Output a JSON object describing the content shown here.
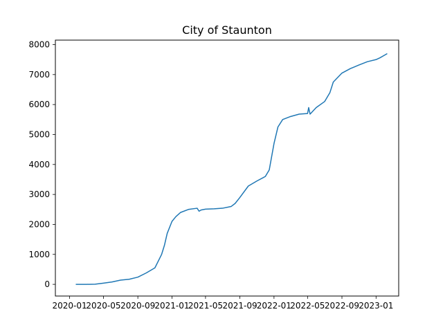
{
  "chart_data": {
    "type": "line",
    "title": "City of Staunton",
    "xlabel": "",
    "ylabel": "",
    "xlim": [
      "2019-11-11",
      "2023-03-23"
    ],
    "ylim": [
      -390,
      8150
    ],
    "grid": false,
    "legend": "none",
    "x_ticks": [
      "2020-01",
      "2020-05",
      "2020-09",
      "2021-01",
      "2021-05",
      "2021-09",
      "2022-01",
      "2022-05",
      "2022-09",
      "2023-01"
    ],
    "y_ticks": [
      0,
      1000,
      2000,
      3000,
      4000,
      5000,
      6000,
      7000,
      8000
    ],
    "colors": {
      "line": "#1f77b4"
    },
    "series": [
      {
        "x": [
          "2020-01-23",
          "2020-03-01",
          "2020-04-01",
          "2020-05-01",
          "2020-06-01",
          "2020-07-01",
          "2020-08-01",
          "2020-09-01",
          "2020-10-01",
          "2020-11-01",
          "2020-11-25",
          "2020-12-05",
          "2020-12-15",
          "2021-01-01",
          "2021-01-15",
          "2021-02-01",
          "2021-03-01",
          "2021-04-01",
          "2021-04-08",
          "2021-04-15",
          "2021-05-01",
          "2021-06-01",
          "2021-07-01",
          "2021-08-01",
          "2021-08-15",
          "2021-09-01",
          "2021-10-01",
          "2021-11-01",
          "2021-12-01",
          "2021-12-15",
          "2022-01-01",
          "2022-01-15",
          "2022-02-01",
          "2022-03-01",
          "2022-04-01",
          "2022-05-01",
          "2022-05-05",
          "2022-05-10",
          "2022-06-01",
          "2022-07-01",
          "2022-07-20",
          "2022-08-01",
          "2022-09-01",
          "2022-10-01",
          "2022-11-01",
          "2022-12-01",
          "2023-01-01",
          "2023-01-15",
          "2023-02-01",
          "2023-02-10"
        ],
        "y": [
          0,
          0,
          5,
          40,
          80,
          140,
          170,
          240,
          380,
          550,
          1000,
          1300,
          1700,
          2100,
          2260,
          2400,
          2500,
          2540,
          2440,
          2480,
          2510,
          2520,
          2540,
          2600,
          2700,
          2900,
          3280,
          3450,
          3600,
          3820,
          4700,
          5250,
          5500,
          5600,
          5680,
          5700,
          5900,
          5680,
          5900,
          6100,
          6400,
          6750,
          7050,
          7200,
          7320,
          7430,
          7500,
          7560,
          7650,
          7700
        ]
      }
    ]
  }
}
